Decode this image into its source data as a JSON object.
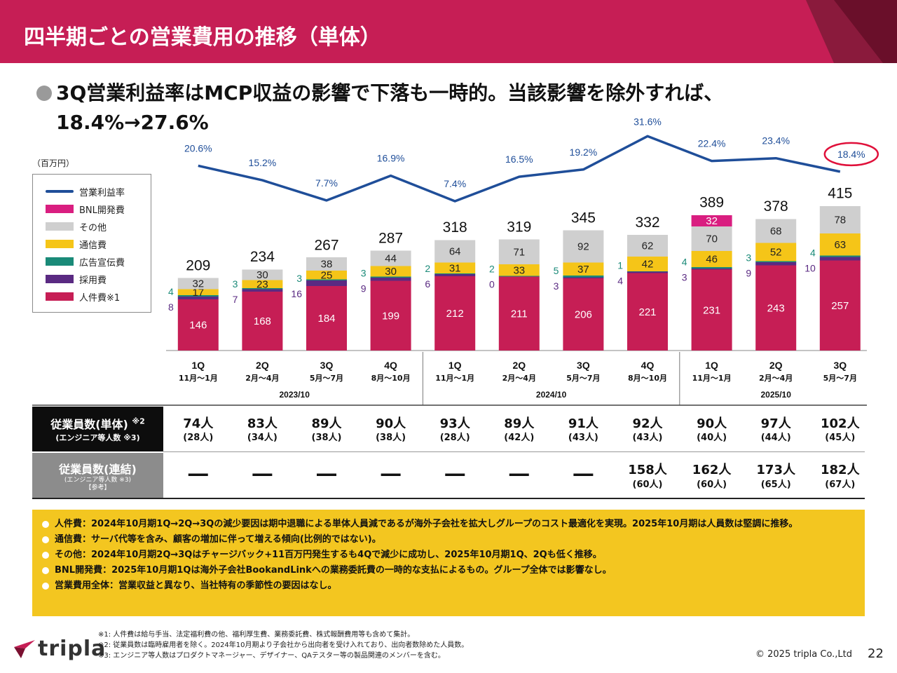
{
  "title": "四半期ごとの営業費用の推移（単体）",
  "headline": {
    "line1": "3Q営業利益率はMCP収益の影響で下落も一時的。当該影響を除外すれば、",
    "line2": "18.4%→27.6%"
  },
  "unit_label": "（百万円）",
  "legend": [
    {
      "label": "営業利益率",
      "color": "#1f4e99",
      "kind": "line"
    },
    {
      "label": "BNL開発費",
      "color": "#d91e80",
      "kind": "box"
    },
    {
      "label": "その他",
      "color": "#cfcfcf",
      "kind": "box"
    },
    {
      "label": "通信費",
      "color": "#f5c518",
      "kind": "box"
    },
    {
      "label": "広告宣伝費",
      "color": "#1a8a78",
      "kind": "box"
    },
    {
      "label": "採用費",
      "color": "#5a2a82",
      "kind": "box"
    },
    {
      "label": "人件費※1",
      "color": "#c61e55",
      "kind": "box"
    }
  ],
  "chart_data": {
    "type": "bar",
    "stacked": true,
    "categories": [
      "1Q",
      "2Q",
      "3Q",
      "4Q",
      "1Q",
      "2Q",
      "3Q",
      "4Q",
      "1Q",
      "2Q",
      "3Q"
    ],
    "category_months": [
      "11月～1月",
      "2月～4月",
      "5月～7月",
      "8月～10月",
      "11月～1月",
      "2月～4月",
      "5月～7月",
      "8月～10月",
      "11月～1月",
      "2月～4月",
      "5月～7月"
    ],
    "fiscal_groups": [
      {
        "label": "2023/10",
        "count": 4
      },
      {
        "label": "2024/10",
        "count": 4
      },
      {
        "label": "2025/10",
        "count": 3
      }
    ],
    "series": [
      {
        "name": "人件費※1",
        "color": "#c61e55",
        "values": [
          146,
          168,
          184,
          199,
          212,
          211,
          206,
          221,
          231,
          243,
          257
        ]
      },
      {
        "name": "採用費",
        "color": "#5a2a82",
        "values": [
          8,
          7,
          16,
          9,
          6,
          0,
          3,
          4,
          3,
          9,
          10
        ]
      },
      {
        "name": "広告宣伝費",
        "color": "#1a8a78",
        "values": [
          4,
          3,
          3,
          3,
          2,
          2,
          5,
          1,
          4,
          3,
          4
        ]
      },
      {
        "name": "通信費",
        "color": "#f5c518",
        "values": [
          17,
          23,
          25,
          30,
          31,
          33,
          37,
          42,
          46,
          52,
          63
        ]
      },
      {
        "name": "その他",
        "color": "#cfcfcf",
        "values": [
          32,
          30,
          38,
          44,
          64,
          71,
          92,
          62,
          70,
          68,
          78
        ]
      },
      {
        "name": "BNL開発費",
        "color": "#d91e80",
        "values": [
          0,
          0,
          0,
          0,
          0,
          0,
          0,
          0,
          32,
          0,
          0
        ]
      }
    ],
    "totals": [
      209,
      234,
      267,
      287,
      318,
      319,
      345,
      332,
      389,
      378,
      415
    ],
    "margin_series": {
      "name": "営業利益率",
      "color": "#1f4e99",
      "values": [
        20.6,
        15.2,
        7.7,
        16.9,
        7.4,
        16.5,
        19.2,
        31.6,
        22.4,
        23.4,
        18.4
      ],
      "labels": [
        "20.6%",
        "15.2%",
        "7.7%",
        "16.9%",
        "7.4%",
        "16.5%",
        "19.2%",
        "31.6%",
        "22.4%",
        "23.4%",
        "18.4%"
      ],
      "highlight_index": 10,
      "highlight_color": "#e0103a"
    },
    "ylim": [
      0,
      450
    ],
    "margin_ylim": [
      0,
      40
    ],
    "legend_position": "left"
  },
  "table": {
    "single_header": "従業員数(単体)",
    "single_header_note": "※2",
    "single_sub": "(エンジニア等人数 ※3)",
    "single_main": [
      "74人",
      "83人",
      "89人",
      "90人",
      "93人",
      "89人",
      "91人",
      "92人",
      "90人",
      "97人",
      "102人"
    ],
    "single_eng": [
      "(28人)",
      "(34人)",
      "(38人)",
      "(38人)",
      "(28人)",
      "(42人)",
      "(43人)",
      "(43人)",
      "(40人)",
      "(44人)",
      "(45人)"
    ],
    "consol_header": "従業員数(連結)",
    "consol_sub": "(エンジニア等人数 ※3)",
    "consol_ref": "【参考】",
    "consol_main": [
      "―",
      "―",
      "―",
      "―",
      "―",
      "―",
      "―",
      "158人",
      "162人",
      "173人",
      "182人"
    ],
    "consol_eng": [
      "",
      "",
      "",
      "",
      "",
      "",
      "",
      "(60人)",
      "(60人)",
      "(65人)",
      "(67人)"
    ]
  },
  "notes": [
    "人件費：2024年10月期1Q→2Q→3Qの減少要因は期中退職による単体人員減であるが海外子会社を拡大しグループのコスト最適化を実現。2025年10月期は人員数は堅調に推移。",
    "通信費：サーバ代等を含み、顧客の増加に伴って増える傾向(比例的ではない)。",
    "その他：2024年10月期2Q→3Qはチャージバック+11百万円発生するも4Qで減少に成功し、2025年10月期1Q、2Qも低く推移。",
    "BNL開発費：2025年10月期1Qは海外子会社BookandLinkへの業務委託費の一時的な支払によるもの。グループ全体では影響なし。",
    "営業費用全体：営業収益と異なり、当社特有の季節性の要因はなし。"
  ],
  "footnotes": [
    "※1: 人件費は給与手当、法定福利費の他、福利厚生費、業務委託費、株式報酬費用等も含めて集計。",
    "※2: 従業員数は臨時雇用者を除く。2024年10月期より子会社から出向者を受け入れており、出向者数除めた人員数。",
    "※3: エンジニア等人数はプロダクトマネージャー、デザイナー、QAテスター等の製品関連のメンバーを含む。"
  ],
  "logo_text": "tripla",
  "copyright": "© 2025 tripla Co.,Ltd",
  "page_number": "22",
  "colors": {
    "brand": "#c61e55",
    "brand_dark": "#7a1030",
    "notes_bg": "#f3c620"
  }
}
